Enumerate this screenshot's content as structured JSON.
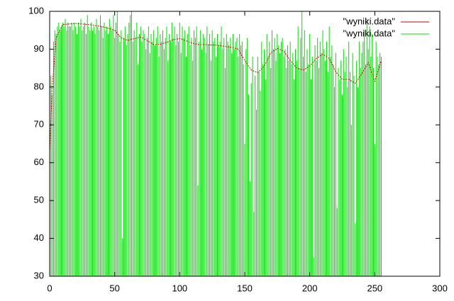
{
  "chart_data": {
    "type": "line",
    "xlim": [
      0,
      300
    ],
    "xticks": [
      0,
      50,
      100,
      150,
      200,
      250,
      300
    ],
    "ylim": [
      30,
      100
    ],
    "yticks": [
      30,
      40,
      50,
      60,
      70,
      80,
      90,
      100
    ],
    "legend": "top-right",
    "series": [
      {
        "name": "\"wyniki.data\"",
        "color": "#cc0000",
        "style": "line",
        "x": [
          0,
          2,
          5,
          10,
          20,
          30,
          40,
          50,
          55,
          60,
          65,
          70,
          75,
          80,
          85,
          90,
          95,
          100,
          105,
          110,
          115,
          120,
          125,
          130,
          135,
          140,
          145,
          150,
          155,
          160,
          165,
          170,
          175,
          180,
          185,
          190,
          195,
          200,
          205,
          210,
          215,
          220,
          225,
          230,
          235,
          240,
          245,
          250,
          255
        ],
        "values": [
          63,
          80,
          93,
          96.5,
          96.8,
          96.5,
          96,
          95,
          93,
          92.3,
          92.8,
          93.2,
          92.3,
          91.2,
          91.3,
          91.8,
          92.5,
          92.8,
          92.2,
          91.5,
          91.2,
          91.2,
          91.1,
          91,
          90.7,
          90.5,
          90,
          87,
          84.5,
          83.8,
          85.5,
          89,
          90.2,
          89.5,
          87,
          85,
          84.5,
          85.5,
          87.5,
          88.7,
          87.5,
          84,
          82,
          82,
          81,
          83.5,
          86.5,
          81.5,
          87
        ]
      },
      {
        "name": "\"wyniki.data\"",
        "color": "#00dd00",
        "style": "impulses",
        "x": [
          0,
          1,
          2,
          3,
          4,
          5,
          6,
          7,
          8,
          9,
          10,
          11,
          12,
          13,
          14,
          15,
          16,
          17,
          18,
          19,
          20,
          21,
          22,
          23,
          24,
          25,
          26,
          27,
          28,
          29,
          30,
          31,
          32,
          33,
          34,
          35,
          36,
          37,
          38,
          39,
          40,
          41,
          42,
          43,
          44,
          45,
          46,
          47,
          48,
          49,
          50,
          51,
          52,
          53,
          54,
          55,
          56,
          57,
          58,
          59,
          60,
          61,
          62,
          63,
          64,
          65,
          66,
          67,
          68,
          69,
          70,
          71,
          72,
          73,
          74,
          75,
          76,
          77,
          78,
          79,
          80,
          81,
          82,
          83,
          84,
          85,
          86,
          87,
          88,
          89,
          90,
          91,
          92,
          93,
          94,
          95,
          96,
          97,
          98,
          99,
          100,
          101,
          102,
          103,
          104,
          105,
          106,
          107,
          108,
          109,
          110,
          111,
          112,
          113,
          114,
          115,
          116,
          117,
          118,
          119,
          120,
          121,
          122,
          123,
          124,
          125,
          126,
          127,
          128,
          129,
          130,
          131,
          132,
          133,
          134,
          135,
          136,
          137,
          138,
          139,
          140,
          141,
          142,
          143,
          144,
          145,
          146,
          147,
          148,
          149,
          150,
          151,
          152,
          153,
          154,
          155,
          156,
          157,
          158,
          159,
          160,
          161,
          162,
          163,
          164,
          165,
          166,
          167,
          168,
          169,
          170,
          171,
          172,
          173,
          174,
          175,
          176,
          177,
          178,
          179,
          180,
          181,
          182,
          183,
          184,
          185,
          186,
          187,
          188,
          189,
          190,
          191,
          192,
          193,
          194,
          195,
          196,
          197,
          198,
          199,
          200,
          201,
          202,
          203,
          204,
          205,
          206,
          207,
          208,
          209,
          210,
          211,
          212,
          213,
          214,
          215,
          216,
          217,
          218,
          219,
          220,
          221,
          222,
          223,
          224,
          225,
          226,
          227,
          228,
          229,
          230,
          231,
          232,
          233,
          234,
          235,
          236,
          237,
          238,
          239,
          240,
          241,
          242,
          243,
          244,
          245,
          246,
          247,
          248,
          249,
          250,
          251,
          252,
          253,
          254,
          255
        ],
        "values": [
          63,
          83,
          78,
          92,
          95,
          94,
          96,
          97,
          95,
          96,
          97,
          96,
          98,
          95,
          97,
          96,
          96,
          97,
          95,
          97,
          96,
          94,
          97,
          96,
          98,
          95,
          96,
          97,
          94,
          99,
          96,
          95,
          97,
          95,
          96,
          94,
          98,
          96,
          95,
          99,
          96,
          93,
          97,
          95,
          96,
          94,
          98,
          96,
          95,
          99,
          93,
          97,
          100,
          94,
          92,
          95,
          40,
          93,
          96,
          91,
          94,
          97,
          99,
          100,
          92,
          95,
          93,
          97,
          86,
          94,
          96,
          92,
          95,
          94,
          90,
          93,
          96,
          89,
          94,
          92,
          95,
          91,
          93,
          96,
          88,
          94,
          92,
          95,
          90,
          93,
          96,
          87,
          94,
          92,
          97,
          93,
          96,
          91,
          94,
          92,
          97,
          89,
          96,
          93,
          95,
          88,
          94,
          96,
          91,
          93,
          87,
          95,
          93,
          96,
          54,
          92,
          95,
          90,
          94,
          93,
          89,
          96,
          91,
          94,
          87,
          95,
          92,
          93,
          88,
          94,
          91,
          92,
          96,
          90,
          93,
          85,
          94,
          92,
          91,
          93,
          89,
          94,
          90,
          92,
          93,
          88,
          94,
          91,
          92,
          86,
          65,
          90,
          93,
          78,
          55,
          81,
          88,
          47,
          83,
          74,
          88,
          84,
          79,
          92,
          86,
          90,
          82,
          94,
          88,
          92,
          85,
          95,
          90,
          93,
          87,
          94,
          91,
          89,
          92,
          93,
          88,
          90,
          85,
          91,
          87,
          92,
          86,
          89,
          82,
          90,
          87,
          96,
          85,
          93,
          100,
          88,
          95,
          84,
          90,
          86,
          94,
          82,
          88,
          35,
          91,
          87,
          93,
          85,
          92,
          89,
          95,
          90,
          87,
          92,
          84,
          96,
          88,
          91,
          86,
          80,
          89,
          48,
          85,
          82,
          87,
          78,
          90,
          84,
          88,
          80,
          92,
          84,
          70,
          89,
          83,
          44,
          87,
          80,
          92,
          85,
          89,
          92,
          95,
          86,
          98,
          90,
          96,
          88,
          94,
          85,
          65,
          92,
          88,
          86,
          89,
          88
        ]
      }
    ]
  }
}
